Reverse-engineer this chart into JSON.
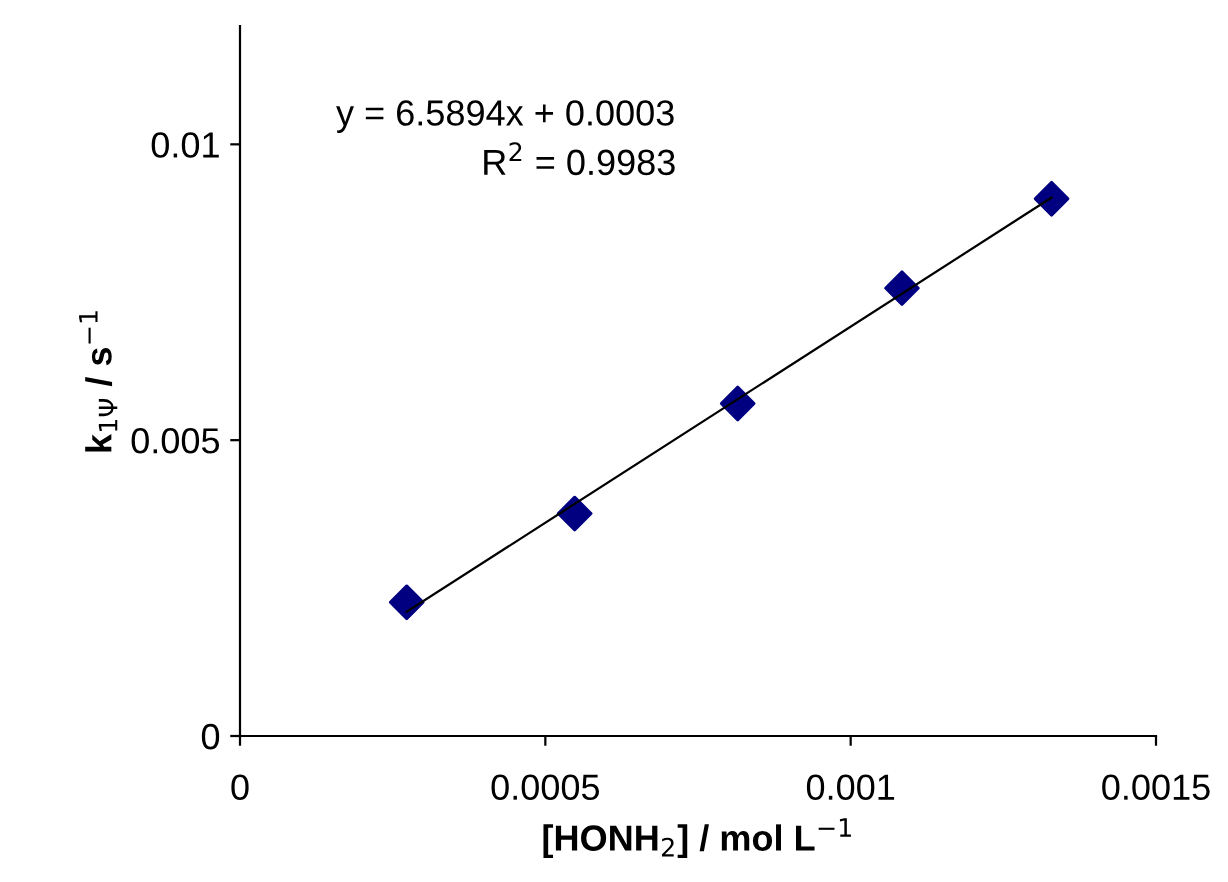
{
  "chart_data": {
    "type": "scatter",
    "xlabel": "[HONH$_{2}$] / mol L$^{−1}$",
    "ylabel": "k$_{1Ψ}$ / s$^{−1}$",
    "series": [
      {
        "color": "#000080",
        "marker": "diamond",
        "x": [
          0.000273,
          0.000548,
          0.000815,
          0.001084,
          0.001329
        ],
        "values": [
          0.00226,
          0.00376,
          0.00562,
          0.00757,
          0.00908
        ]
      },
      {
        "type": "line",
        "color": "#000000",
        "marker": "none",
        "line_style": "solid",
        "x": [
          0.000273,
          0.001329
        ],
        "values": [
          0.0021,
          0.0091
        ]
      }
    ],
    "annotations": [
      "y = 6.5894x + 0.0003",
      "R$^{2}$ = 0.9983"
    ],
    "xlim": [
      0,
      0.0015
    ],
    "xticks": [
      0,
      0.0005,
      0.001,
      0.0015
    ],
    "ylim": [
      0,
      0.012
    ],
    "yticks": [
      0,
      0.005,
      0.01
    ],
    "grid": false,
    "legend": false
  }
}
